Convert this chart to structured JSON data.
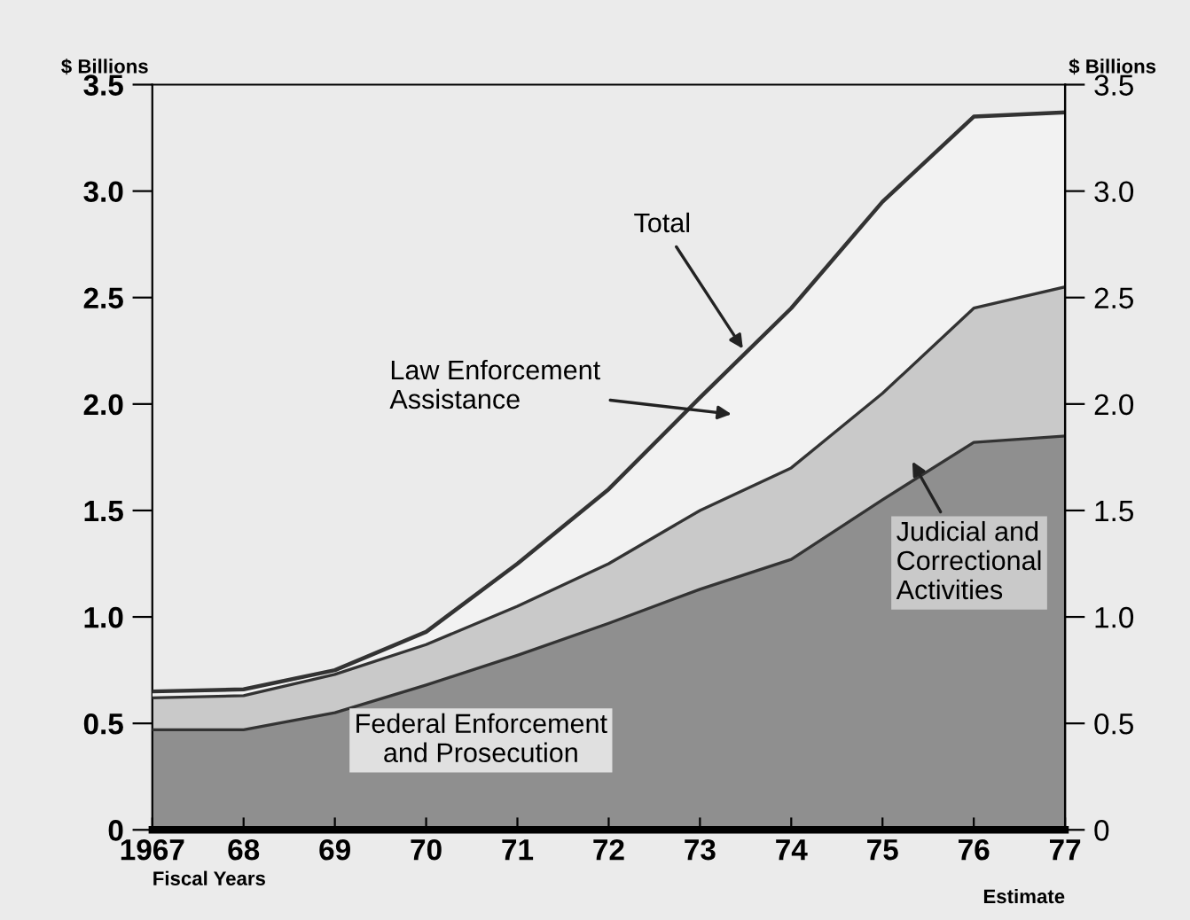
{
  "chart_data": {
    "type": "area",
    "stacked": true,
    "x": [
      1967,
      1968,
      1969,
      1970,
      1971,
      1972,
      1973,
      1974,
      1975,
      1976,
      1977
    ],
    "series": [
      {
        "name": "Federal Enforcement and Prosecution",
        "color": "#8f8f8f",
        "values": [
          0.47,
          0.47,
          0.55,
          0.68,
          0.82,
          0.97,
          1.13,
          1.27,
          1.55,
          1.82,
          1.85
        ]
      },
      {
        "name": "Judicial and Correctional Activities",
        "color": "#c9c9c9",
        "values": [
          0.15,
          0.16,
          0.18,
          0.19,
          0.23,
          0.28,
          0.37,
          0.43,
          0.5,
          0.63,
          0.7
        ]
      },
      {
        "name": "Law Enforcement Assistance",
        "color": "#f2f2f2",
        "values": [
          0.03,
          0.03,
          0.02,
          0.06,
          0.2,
          0.35,
          0.53,
          0.75,
          0.9,
          0.9,
          0.82
        ]
      }
    ],
    "annotations": [
      {
        "text": "Total",
        "x": 1973.5,
        "y": 2.24
      },
      "Estimate"
    ],
    "xlabel": "Fiscal Years",
    "ylabel": "$ Billions",
    "y2label": "$ Billions",
    "xlim": [
      1967,
      1977
    ],
    "xticks": [
      1967,
      {
        "value": 1968,
        "label": "68"
      },
      {
        "value": 1969,
        "label": "69"
      },
      {
        "value": 1970,
        "label": "70"
      },
      {
        "value": 1971,
        "label": "71"
      },
      {
        "value": 1972,
        "label": "72"
      },
      {
        "value": 1973,
        "label": "73"
      },
      {
        "value": 1974,
        "label": "74"
      },
      {
        "value": 1975,
        "label": "75"
      },
      {
        "value": 1976,
        "label": "76"
      },
      {
        "value": 1977,
        "label": "77"
      }
    ],
    "ylim": [
      0,
      3.5
    ],
    "yticks": [
      0,
      0.5,
      {
        "value": 1,
        "label": "1.0"
      },
      1.5,
      {
        "value": 2,
        "label": "2.0"
      },
      2.5,
      {
        "value": 3,
        "label": "3.0"
      },
      3.5
    ],
    "y2lim": [
      0,
      3.5
    ],
    "y2ticks": [
      0,
      0.5,
      {
        "value": 1,
        "label": "1.0"
      },
      1.5,
      {
        "value": 2,
        "label": "2.0"
      },
      2.5,
      {
        "value": 3,
        "label": "3.0"
      },
      3.5
    ],
    "grid": false,
    "legend": false
  }
}
